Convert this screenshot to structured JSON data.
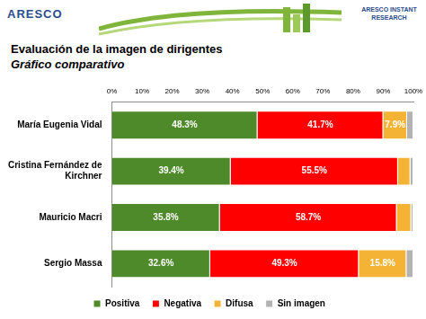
{
  "logos": [
    "ARESCO",
    "ARESCO INSTANT RESEARCH"
  ],
  "chart_data": {
    "type": "bar",
    "title": "Evaluación de la imagen de dirigentes",
    "subtitle": "Gráfico comparativo",
    "orientation": "horizontal",
    "stacked": true,
    "data_labels": true,
    "grid": false,
    "legend": "bottom",
    "categories": [
      "María Eugenia Vidal",
      "Cristina Fernández de Kirchner",
      "Mauricio Macri",
      "Sergio Massa"
    ],
    "series": [
      {
        "name": "Positiva",
        "color": "#4e8a2a",
        "values": [
          48.3,
          39.4,
          35.8,
          32.6
        ],
        "value_labels": [
          "48.3%",
          "39.4%",
          "35.8%",
          "32.6%"
        ]
      },
      {
        "name": "Negativa",
        "color": "#ff0000",
        "values": [
          41.7,
          55.5,
          58.7,
          49.3
        ],
        "value_labels": [
          "41.7%",
          "55.5%",
          "58.7%",
          "49.3%"
        ]
      },
      {
        "name": "Difusa",
        "color": "#f5b335",
        "values": [
          7.9,
          4.1,
          4.8,
          15.8
        ],
        "value_labels": [
          "7.9%",
          null,
          null,
          "15.8%"
        ]
      },
      {
        "name": "Sin imagen",
        "color": "#b3b3b3",
        "values": [
          2.1,
          1.0,
          0.7,
          2.3
        ],
        "value_labels": [
          null,
          null,
          null,
          null
        ]
      }
    ],
    "xlim": [
      0,
      100
    ],
    "xticks": [
      {
        "value": 0,
        "label": "0%"
      },
      {
        "value": 10,
        "label": "10%"
      },
      {
        "value": 20,
        "label": "20%"
      },
      {
        "value": 30,
        "label": "30%"
      },
      {
        "value": 40,
        "label": "40%"
      },
      {
        "value": 50,
        "label": "50%"
      },
      {
        "value": 60,
        "label": "60%"
      },
      {
        "value": 70,
        "label": "70%"
      },
      {
        "value": 80,
        "label": "80%"
      },
      {
        "value": 90,
        "label": "90%"
      },
      {
        "value": 100,
        "label": "100%"
      }
    ]
  }
}
